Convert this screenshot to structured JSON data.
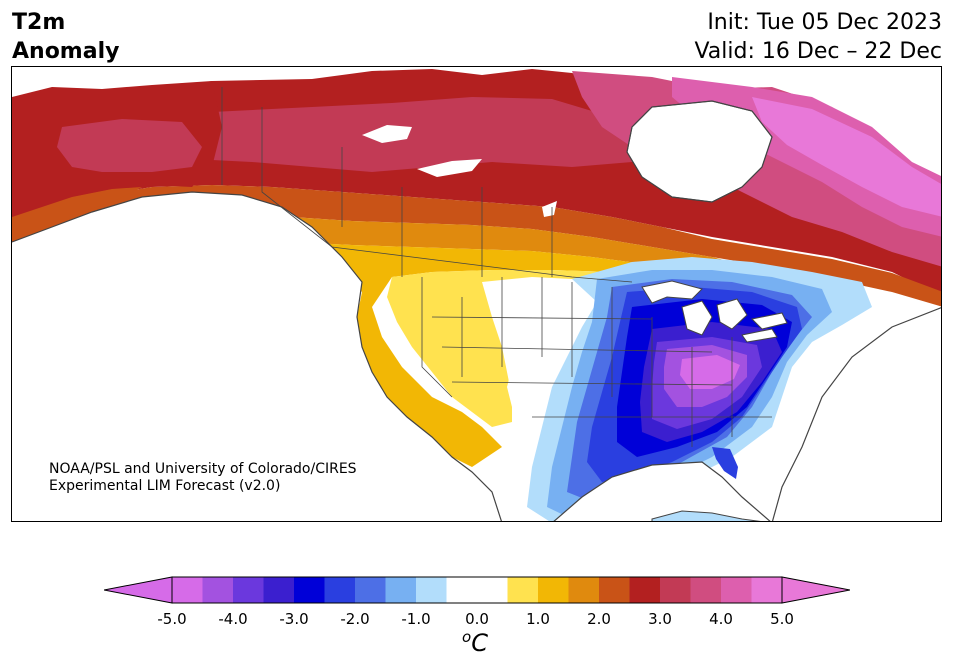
{
  "header": {
    "title_line1": "T2m",
    "title_line2": "Anomaly",
    "init_text": "Init: Tue 05 Dec 2023",
    "valid_text": "Valid: 16 Dec – 22 Dec"
  },
  "credit": {
    "line1": "NOAA/PSL and University of Colorado/CIRES",
    "line2": "Experimental LIM Forecast (v2.0)"
  },
  "colorbar": {
    "unit_base": "C",
    "unit_sup": "o",
    "tick_labels": [
      "-5.0",
      "-4.0",
      "-3.0",
      "-2.0",
      "-1.0",
      "0.0",
      "1.0",
      "2.0",
      "3.0",
      "4.0",
      "5.0"
    ],
    "colors": [
      "#d66be8",
      "#a352e0",
      "#6b38dd",
      "#3b1fcf",
      "#0000d8",
      "#2a3fe0",
      "#4d6fe6",
      "#77b0f2",
      "#b2ddfb",
      "#ffffff",
      "#ffffff",
      "#ffe24f",
      "#f2b705",
      "#e08a0e",
      "#c95317",
      "#b32020",
      "#c23a55",
      "#d04d80",
      "#dd5fae",
      "#e878d8"
    ],
    "under_color": "#d66be8",
    "over_color": "#e878d8"
  },
  "map": {
    "region": "North America",
    "colors": {
      "deep_red": "#b32020",
      "crimson": "#c23a55",
      "rose": "#d04d80",
      "pink": "#dd5fae",
      "magenta": "#e878d8",
      "orange_dark": "#c95317",
      "orange": "#e08a0e",
      "amber": "#f2b705",
      "yellow": "#ffe24f",
      "light_blue": "#b2ddfb",
      "sky_blue": "#77b0f2",
      "mid_blue": "#4d6fe6",
      "blue": "#2a3fe0",
      "deep_blue": "#0000d8",
      "indigo": "#3b1fcf",
      "violet": "#6b38dd",
      "purple": "#a352e0",
      "orchid": "#d66be8",
      "coast": "#444444"
    }
  }
}
